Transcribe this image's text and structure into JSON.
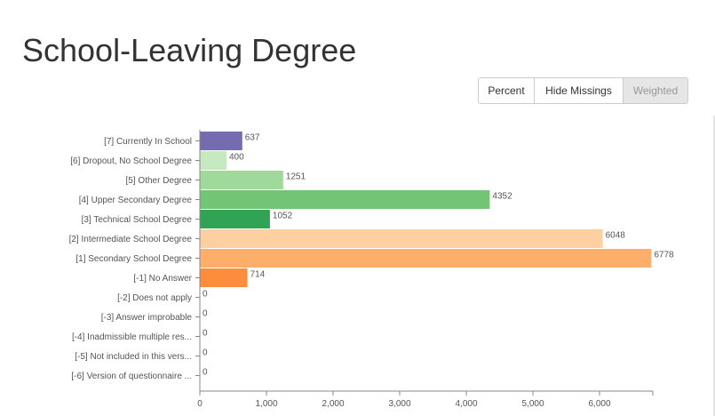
{
  "title": "School-Leaving Degree",
  "buttons": {
    "percent": "Percent",
    "hide_missings": "Hide Missings",
    "weighted": "Weighted"
  },
  "chart_data": {
    "type": "bar",
    "orientation": "horizontal",
    "title": "",
    "xlabel": "",
    "ylabel": "",
    "xlim": [
      0,
      6800
    ],
    "x_ticks": [
      "0",
      "1,000",
      "2,000",
      "3,000",
      "4,000",
      "5,000",
      "6,000"
    ],
    "grid": false,
    "categories": [
      "[7] Currently In School",
      "[6] Dropout, No School Degree",
      "[5] Other Degree",
      "[4] Upper Secondary Degree",
      "[3] Technical School Degree",
      "[2] Intermediate School Degree",
      "[1] Secondary School Degree",
      "[-1] No Answer",
      "[-2] Does not apply",
      "[-3] Answer improbable",
      "[-4] Inadmissible multiple res...",
      "[-5] Not included in this vers...",
      "[-6] Version of questionnaire ..."
    ],
    "values": [
      637,
      400,
      1251,
      4352,
      1052,
      6048,
      6778,
      714,
      0,
      0,
      0,
      0,
      0
    ],
    "value_labels": [
      "637",
      "400",
      "1251",
      "4352",
      "1052",
      "6048",
      "6778",
      "714",
      "0",
      "0",
      "0",
      "0",
      "0"
    ],
    "colors": [
      "#756bb1",
      "#c7e9c0",
      "#a1d99b",
      "#74c476",
      "#31a354",
      "#fdd0a2",
      "#fdae6b",
      "#fd8d3c",
      "#fd8d3c",
      "#fd8d3c",
      "#fd8d3c",
      "#fd8d3c",
      "#fd8d3c"
    ]
  }
}
